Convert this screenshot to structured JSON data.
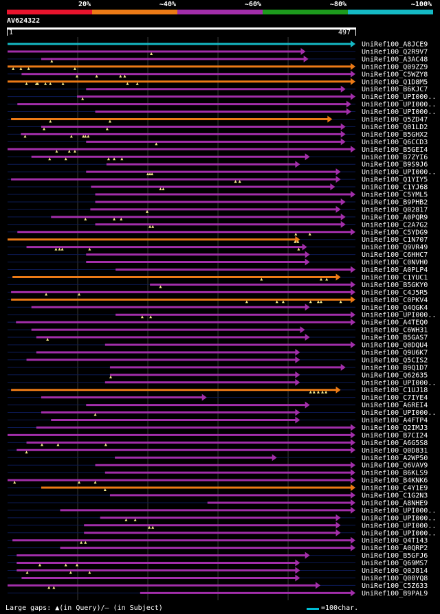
{
  "colors": {
    "red": "#e8142d",
    "orange": "#ec7a16",
    "purple": "#a22eaa",
    "green": "#1d9a1d",
    "cyan": "#15b9c5",
    "gridline": "#3a3a3a",
    "row_line": "#0c1a55",
    "gap_marker": "#f4e88a"
  },
  "legend": [
    {
      "label": "20%",
      "color": "#e8142d"
    },
    {
      "label": "~40%",
      "color": "#ec7a16"
    },
    {
      "label": "~60%",
      "color": "#a22eaa"
    },
    {
      "label": "~80%",
      "color": "#1d9a1d"
    },
    {
      "label": "~100%",
      "color": "#15b9c5"
    }
  ],
  "query": {
    "id": "AV624322",
    "start": "1",
    "end": "497"
  },
  "footer": {
    "gaps_text": "Large gaps: ▲(in Query)/– (in Subject)",
    "scale_text": "=100char."
  },
  "hits": [
    {
      "name": "UniRef100_A8JCE9",
      "s": 1,
      "e": 497,
      "c": "cyan",
      "gaps": []
    },
    {
      "name": "UniRef100_Q2R9V7",
      "s": 1,
      "e": 426,
      "c": "purple",
      "gaps": [
        206
      ]
    },
    {
      "name": "UniRef100_A3AC48",
      "s": 49,
      "e": 430,
      "c": "purple",
      "gaps": [
        64
      ]
    },
    {
      "name": "UniRef100_Q09ZZ9",
      "s": 1,
      "e": 497,
      "c": "orange",
      "gaps": [
        9,
        20,
        31,
        97
      ]
    },
    {
      "name": "UniRef100_C5WZY8",
      "s": 21,
      "e": 497,
      "c": "purple",
      "gaps": [
        100,
        128,
        162,
        168
      ]
    },
    {
      "name": "UniRef100_Q1D8M5",
      "s": 1,
      "e": 497,
      "c": "orange",
      "gaps": [
        28,
        42,
        44,
        55,
        62,
        80,
        172,
        186
      ]
    },
    {
      "name": "UniRef100_B6KJC7",
      "s": 113,
      "e": 483,
      "c": "purple",
      "gaps": []
    },
    {
      "name": "UniRef100_UPI000..",
      "s": 100,
      "e": 497,
      "c": "purple",
      "gaps": [
        108
      ]
    },
    {
      "name": "UniRef100_UPI000..",
      "s": 15,
      "e": 491,
      "c": "purple",
      "gaps": []
    },
    {
      "name": "UniRef100_UPI000..",
      "s": 126,
      "e": 491,
      "c": "purple",
      "gaps": []
    },
    {
      "name": "UniRef100_Q5ZD47",
      "s": 6,
      "e": 464,
      "c": "orange",
      "gaps": [
        62,
        147
      ]
    },
    {
      "name": "UniRef100_Q01LD2",
      "s": 49,
      "e": 483,
      "c": "purple",
      "gaps": [
        53,
        143
      ]
    },
    {
      "name": "UniRef100_B5GHX2",
      "s": 20,
      "e": 483,
      "c": "purple",
      "gaps": [
        26,
        92,
        109,
        112,
        116
      ]
    },
    {
      "name": "UniRef100_Q6CCD3",
      "s": 113,
      "e": 483,
      "c": "purple",
      "gaps": [
        213
      ]
    },
    {
      "name": "UniRef100_B5GEI4",
      "s": 1,
      "e": 497,
      "c": "purple",
      "gaps": [
        71,
        89,
        97
      ]
    },
    {
      "name": "UniRef100_B7ZYI6",
      "s": 35,
      "e": 432,
      "c": "purple",
      "gaps": [
        61,
        84,
        145,
        153,
        164
      ]
    },
    {
      "name": "UniRef100_B9S9J6",
      "s": 142,
      "e": 418,
      "c": "purple",
      "gaps": []
    },
    {
      "name": "UniRef100_UPI000..",
      "s": 113,
      "e": 476,
      "c": "purple",
      "gaps": [
        201,
        204,
        207
      ]
    },
    {
      "name": "UniRef100_Q1YIY5",
      "s": 6,
      "e": 476,
      "c": "purple",
      "gaps": [
        326,
        332
      ]
    },
    {
      "name": "UniRef100_C1YJ68",
      "s": 120,
      "e": 468,
      "c": "purple",
      "gaps": [
        219,
        223
      ]
    },
    {
      "name": "UniRef100_C5YML5",
      "s": 126,
      "e": 497,
      "c": "purple",
      "gaps": []
    },
    {
      "name": "UniRef100_B9PHB2",
      "s": 126,
      "e": 483,
      "c": "purple",
      "gaps": []
    },
    {
      "name": "UniRef100_Q02817",
      "s": 119,
      "e": 476,
      "c": "purple",
      "gaps": [
        200
      ]
    },
    {
      "name": "UniRef100_A0PQR9",
      "s": 63,
      "e": 483,
      "c": "purple",
      "gaps": [
        112,
        153,
        163
      ]
    },
    {
      "name": "UniRef100_C2A7G2",
      "s": 126,
      "e": 483,
      "c": "purple",
      "gaps": [
        204,
        208
      ]
    },
    {
      "name": "UniRef100_C5YDG9",
      "s": 15,
      "e": 497,
      "c": "purple",
      "gaps": [
        412,
        432
      ]
    },
    {
      "name": "UniRef100_C1N707",
      "s": 1,
      "e": 418,
      "c": "orange",
      "gaps": [
        411,
        415
      ]
    },
    {
      "name": "UniRef100_Q9VR49",
      "s": 28,
      "e": 428,
      "c": "purple",
      "gaps": [
        70,
        75,
        79,
        118,
        416
      ]
    },
    {
      "name": "UniRef100_C6HHC7",
      "s": 113,
      "e": 432,
      "c": "purple",
      "gaps": []
    },
    {
      "name": "UniRef100_C0NVH0",
      "s": 113,
      "e": 432,
      "c": "purple",
      "gaps": []
    },
    {
      "name": "UniRef100_A0PLP4",
      "s": 155,
      "e": 497,
      "c": "purple",
      "gaps": []
    },
    {
      "name": "UniRef100_C1YUC1",
      "s": 8,
      "e": 476,
      "c": "orange",
      "gaps": [
        363,
        448,
        456
      ]
    },
    {
      "name": "UniRef100_B5GKY0",
      "s": 204,
      "e": 497,
      "c": "purple",
      "gaps": [
        219
      ]
    },
    {
      "name": "UniRef100_C4J5R5",
      "s": 6,
      "e": 497,
      "c": "purple",
      "gaps": [
        56,
        103
      ]
    },
    {
      "name": "UniRef100_C0PKV4",
      "s": 6,
      "e": 497,
      "c": "orange",
      "gaps": [
        342,
        385,
        394,
        433,
        444,
        448,
        476
      ]
    },
    {
      "name": "UniRef100_Q4QGK4",
      "s": 35,
      "e": 432,
      "c": "purple",
      "gaps": []
    },
    {
      "name": "UniRef100_UPI000..",
      "s": 155,
      "e": 497,
      "c": "purple",
      "gaps": [
        193,
        205
      ]
    },
    {
      "name": "UniRef100_A4TEQ0",
      "s": 13,
      "e": 497,
      "c": "purple",
      "gaps": []
    },
    {
      "name": "UniRef100_C6WH31",
      "s": 35,
      "e": 425,
      "c": "purple",
      "gaps": []
    },
    {
      "name": "UniRef100_B5GAS7",
      "s": 42,
      "e": 432,
      "c": "purple",
      "gaps": [
        58
      ]
    },
    {
      "name": "UniRef100_Q0DQU4",
      "s": 140,
      "e": 497,
      "c": "purple",
      "gaps": []
    },
    {
      "name": "UniRef100_Q9U6K7",
      "s": 42,
      "e": 418,
      "c": "purple",
      "gaps": []
    },
    {
      "name": "UniRef100_Q5CIS2",
      "s": 28,
      "e": 418,
      "c": "purple",
      "gaps": []
    },
    {
      "name": "UniRef100_B9Q1D7",
      "s": 147,
      "e": 483,
      "c": "purple",
      "gaps": []
    },
    {
      "name": "UniRef100_Q62635",
      "s": 147,
      "e": 418,
      "c": "purple",
      "gaps": [
        148
      ]
    },
    {
      "name": "UniRef100_UPI000..",
      "s": 140,
      "e": 418,
      "c": "purple",
      "gaps": []
    },
    {
      "name": "UniRef100_C1UJ18",
      "s": 6,
      "e": 476,
      "c": "orange",
      "gaps": [
        433,
        438,
        444,
        450,
        455
      ]
    },
    {
      "name": "UniRef100_C7IYE4",
      "s": 49,
      "e": 285,
      "c": "purple",
      "gaps": []
    },
    {
      "name": "UniRef100_A6REI4",
      "s": 113,
      "e": 432,
      "c": "purple",
      "gaps": []
    },
    {
      "name": "UniRef100_UPI000..",
      "s": 49,
      "e": 418,
      "c": "purple",
      "gaps": [
        126
      ]
    },
    {
      "name": "UniRef100_A4FTP4",
      "s": 63,
      "e": 418,
      "c": "purple",
      "gaps": []
    },
    {
      "name": "UniRef100_Q2IMJ3",
      "s": 42,
      "e": 497,
      "c": "purple",
      "gaps": []
    },
    {
      "name": "UniRef100_B7CI24",
      "s": 1,
      "e": 497,
      "c": "purple",
      "gaps": []
    },
    {
      "name": "UniRef100_A6G5S8",
      "s": 28,
      "e": 497,
      "c": "purple",
      "gaps": [
        50,
        73,
        141
      ]
    },
    {
      "name": "UniRef100_Q0D831",
      "s": 14,
      "e": 497,
      "c": "purple",
      "gaps": [
        28
      ]
    },
    {
      "name": "UniRef100_A2WP50",
      "s": 154,
      "e": 385,
      "c": "purple",
      "gaps": []
    },
    {
      "name": "UniRef100_Q6VAV9",
      "s": 126,
      "e": 497,
      "c": "purple",
      "gaps": []
    },
    {
      "name": "UniRef100_B6KLS9",
      "s": 140,
      "e": 497,
      "c": "purple",
      "gaps": []
    },
    {
      "name": "UniRef100_B4KNK6",
      "s": 1,
      "e": 497,
      "c": "purple",
      "gaps": [
        11,
        103,
        126
      ]
    },
    {
      "name": "UniRef100_C4Y1E9",
      "s": 49,
      "e": 497,
      "c": "orange",
      "gaps": [
        140
      ]
    },
    {
      "name": "UniRef100_C1G2N3",
      "s": 147,
      "e": 497,
      "c": "purple",
      "gaps": []
    },
    {
      "name": "UniRef100_A8NHE9",
      "s": 286,
      "e": 497,
      "c": "purple",
      "gaps": []
    },
    {
      "name": "UniRef100_UPI000..",
      "s": 76,
      "e": 497,
      "c": "purple",
      "gaps": []
    },
    {
      "name": "UniRef100_UPI000..",
      "s": 133,
      "e": 476,
      "c": "purple",
      "gaps": [
        170,
        183
      ]
    },
    {
      "name": "UniRef100_UPI000..",
      "s": 110,
      "e": 476,
      "c": "purple",
      "gaps": [
        203,
        208
      ]
    },
    {
      "name": "UniRef100_UPI000..",
      "s": 110,
      "e": 476,
      "c": "purple",
      "gaps": []
    },
    {
      "name": "UniRef100_Q4T143",
      "s": 8,
      "e": 497,
      "c": "purple",
      "gaps": [
        106,
        112
      ]
    },
    {
      "name": "UniRef100_A0QRP2",
      "s": 76,
      "e": 497,
      "c": "purple",
      "gaps": []
    },
    {
      "name": "UniRef100_B5GFJ6",
      "s": 14,
      "e": 432,
      "c": "purple",
      "gaps": []
    },
    {
      "name": "UniRef100_Q69MS7",
      "s": 14,
      "e": 418,
      "c": "purple",
      "gaps": [
        47,
        84,
        100
      ]
    },
    {
      "name": "UniRef100_Q0J814",
      "s": 14,
      "e": 418,
      "c": "purple",
      "gaps": [
        29,
        91,
        118
      ]
    },
    {
      "name": "UniRef100_Q00YQ8",
      "s": 21,
      "e": 418,
      "c": "purple",
      "gaps": []
    },
    {
      "name": "UniRef100_C5Z633",
      "s": 1,
      "e": 447,
      "c": "purple",
      "gaps": [
        60,
        67
      ]
    },
    {
      "name": "UniRef100_B9PAL9",
      "s": 190,
      "e": 497,
      "c": "purple",
      "gaps": []
    }
  ]
}
